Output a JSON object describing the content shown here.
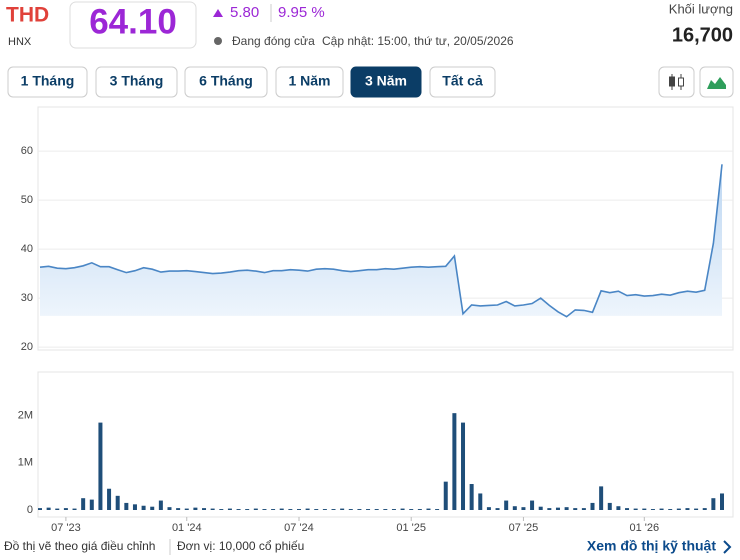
{
  "header": {
    "ticker": "THD",
    "exchange": "HNX",
    "price": "64.10",
    "change": "5.80",
    "change_percent": "9.95 %",
    "status": "Đang đóng cửa",
    "updated": "Cập nhật: 15:00, thứ tư, 20/05/2026",
    "volume_label": "Khối lượng",
    "volume": "16,700"
  },
  "range_buttons": {
    "labels": [
      "1 Tháng",
      "3 Tháng",
      "6 Tháng",
      "1 Năm",
      "3 Năm",
      "Tất cả"
    ],
    "active": 4
  },
  "footer": {
    "note": "Đồ thị vẽ theo giá điều chỉnh",
    "unit": "Đơn vị: 10,000 cổ phiếu",
    "link": "Xem đồ thị kỹ thuật"
  },
  "chart_data": [
    {
      "type": "area",
      "color": "#4a86c5",
      "ylim": [
        19,
        69
      ],
      "yticks": [
        20,
        30,
        40,
        50,
        60
      ],
      "grid": true,
      "values": [
        36.3,
        36.5,
        36.1,
        36,
        36.2,
        36.6,
        37.2,
        36.4,
        36.4,
        35.8,
        35.2,
        35.6,
        36.2,
        35.9,
        35.3,
        35.5,
        35.5,
        35.6,
        35.4,
        35.2,
        35,
        35.1,
        35.3,
        35.6,
        35.7,
        35.5,
        35.2,
        35.6,
        35.6,
        35.8,
        35.7,
        35.5,
        35.9,
        36,
        35.9,
        35.6,
        35.4,
        35.6,
        35.8,
        35.8,
        36,
        35.9,
        36.1,
        36.3,
        36.4,
        36.3,
        36.4,
        36.5,
        38.6,
        26.8,
        28.6,
        28.4,
        28.5,
        28.6,
        29.3,
        28.4,
        28.6,
        28.9,
        30,
        28.5,
        27.2,
        26.2,
        27.6,
        27.5,
        27.1,
        31.5,
        31.1,
        31.4,
        30.5,
        30.7,
        30.4,
        30.5,
        30.8,
        30.6,
        31.1,
        31.4,
        31.2,
        31.6,
        41.2,
        57.3
      ]
    },
    {
      "type": "bar",
      "color": "#1f4e79",
      "ylim": [
        0,
        2900000
      ],
      "yticks": [
        0,
        {
          "value": 1000000,
          "label": "1M"
        },
        {
          "value": 2000000,
          "label": "2M"
        }
      ],
      "categories": [
        null,
        null,
        null,
        "07 '23",
        null,
        null,
        null,
        null,
        null,
        null,
        null,
        null,
        null,
        null,
        null,
        null,
        null,
        "01 '24",
        null,
        null,
        null,
        null,
        null,
        null,
        null,
        null,
        null,
        null,
        null,
        null,
        "07 '24",
        null,
        null,
        null,
        null,
        null,
        null,
        null,
        null,
        null,
        null,
        null,
        null,
        "01 '25",
        null,
        null,
        null,
        null,
        null,
        null,
        null,
        null,
        null,
        null,
        null,
        null,
        "07 '25",
        null,
        null,
        null,
        null,
        null,
        null,
        null,
        null,
        null,
        null,
        null,
        null,
        null,
        "01 '26",
        null,
        null,
        null,
        null,
        null,
        null,
        null,
        null,
        null
      ],
      "values": [
        40000,
        50000,
        30000,
        40000,
        30000,
        250000,
        220000,
        1850000,
        450000,
        300000,
        150000,
        120000,
        90000,
        70000,
        200000,
        60000,
        40000,
        30000,
        50000,
        40000,
        30000,
        20000,
        30000,
        20000,
        20000,
        30000,
        20000,
        20000,
        30000,
        20000,
        20000,
        30000,
        20000,
        20000,
        20000,
        30000,
        20000,
        20000,
        20000,
        20000,
        20000,
        20000,
        30000,
        20000,
        20000,
        30000,
        20000,
        600000,
        2050000,
        1850000,
        550000,
        350000,
        60000,
        40000,
        200000,
        80000,
        60000,
        200000,
        70000,
        40000,
        50000,
        60000,
        40000,
        40000,
        150000,
        500000,
        150000,
        80000,
        40000,
        30000,
        30000,
        20000,
        30000,
        20000,
        30000,
        40000,
        30000,
        40000,
        250000,
        350000
      ]
    }
  ]
}
